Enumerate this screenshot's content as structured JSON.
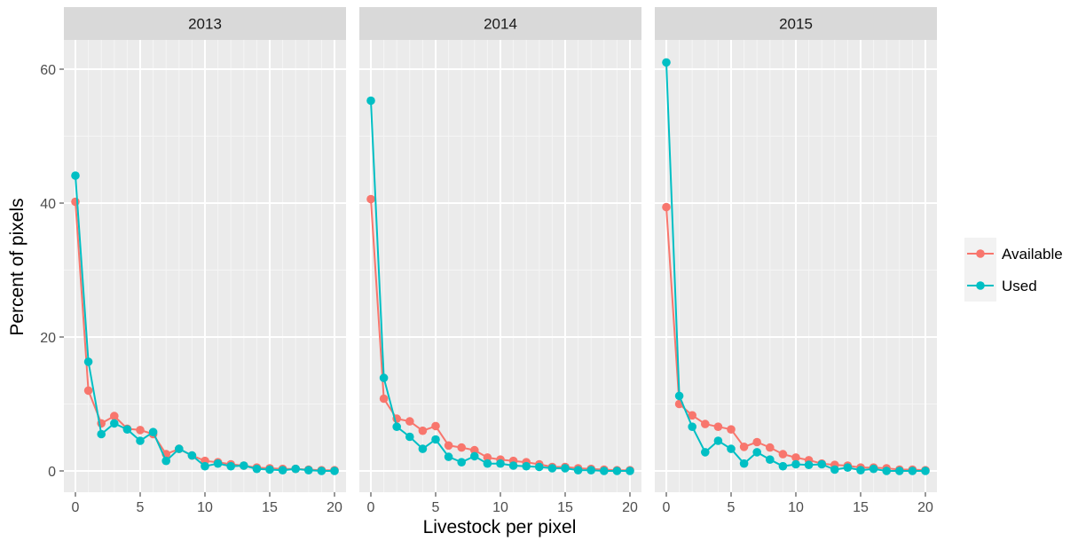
{
  "chart_data": {
    "type": "line",
    "facets": [
      "2013",
      "2014",
      "2015"
    ],
    "xlabel": "Livestock per pixel",
    "ylabel": "Percent of pixels",
    "xlim": [
      0,
      20
    ],
    "ylim": [
      0,
      65
    ],
    "x_ticks": [
      0,
      5,
      10,
      15,
      20
    ],
    "y_ticks": [
      0,
      20,
      40,
      60
    ],
    "grid": true,
    "legend_position": "right",
    "x": [
      0,
      1,
      2,
      3,
      4,
      5,
      6,
      7,
      8,
      9,
      10,
      11,
      12,
      13,
      14,
      15,
      16,
      17,
      18,
      19,
      20
    ],
    "series": [
      {
        "name": "Available",
        "color": "#F8766D",
        "panels": {
          "2013": [
            40.2,
            12.0,
            7.1,
            8.2,
            6.3,
            6.1,
            5.5,
            2.5,
            3.3,
            2.3,
            1.5,
            1.3,
            1.0,
            0.8,
            0.5,
            0.4,
            0.3,
            0.3,
            0.2,
            0.1,
            0.1
          ],
          "2014": [
            40.6,
            10.8,
            7.8,
            7.4,
            6.0,
            6.7,
            3.8,
            3.5,
            3.1,
            2.0,
            1.7,
            1.5,
            1.3,
            1.0,
            0.6,
            0.6,
            0.4,
            0.3,
            0.2,
            0.1,
            0.1
          ],
          "2015": [
            39.4,
            10.0,
            8.3,
            7.0,
            6.6,
            6.2,
            3.6,
            4.3,
            3.5,
            2.5,
            2.0,
            1.6,
            1.1,
            0.9,
            0.8,
            0.5,
            0.5,
            0.4,
            0.2,
            0.2,
            0.1
          ]
        }
      },
      {
        "name": "Used",
        "color": "#00BFC4",
        "panels": {
          "2013": [
            44.1,
            16.3,
            5.5,
            7.1,
            6.2,
            4.5,
            5.8,
            1.5,
            3.3,
            2.3,
            0.7,
            1.1,
            0.7,
            0.8,
            0.3,
            0.2,
            0.1,
            0.3,
            0.1,
            0.0,
            0.0
          ],
          "2014": [
            55.3,
            13.9,
            6.6,
            5.1,
            3.3,
            4.7,
            2.1,
            1.3,
            2.2,
            1.1,
            1.1,
            0.8,
            0.7,
            0.6,
            0.4,
            0.4,
            0.1,
            0.1,
            0.0,
            0.0,
            0.0
          ],
          "2015": [
            61.0,
            11.2,
            6.6,
            2.8,
            4.5,
            3.3,
            1.1,
            2.8,
            1.7,
            0.7,
            1.0,
            0.9,
            1.0,
            0.2,
            0.5,
            0.1,
            0.3,
            0.0,
            0.0,
            0.0,
            0.0
          ]
        }
      }
    ]
  }
}
